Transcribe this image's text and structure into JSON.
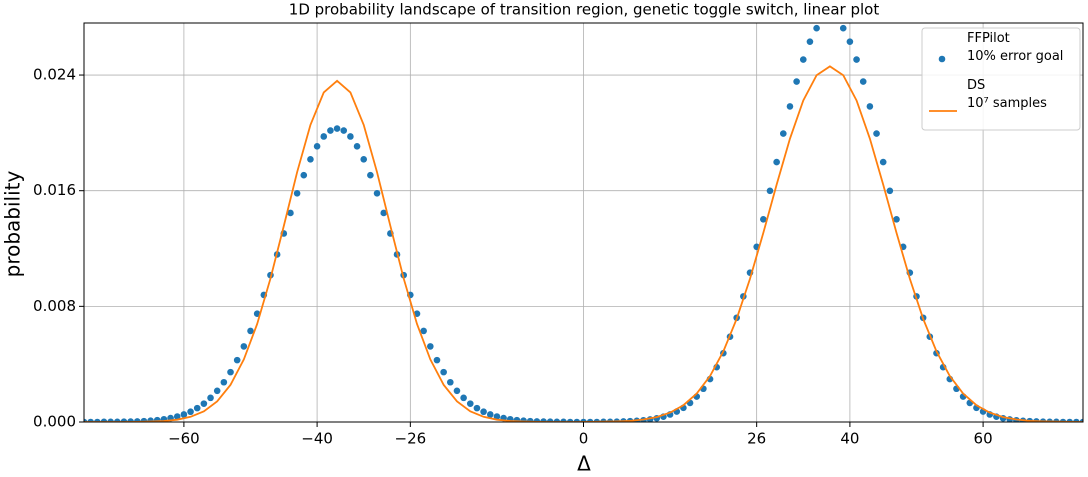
{
  "chart_data": {
    "type": "scatter",
    "title": "1D probability landscape of transition region, genetic toggle switch, linear plot",
    "xlabel": "Δ",
    "ylabel": "probability",
    "xlim": [
      -75,
      75
    ],
    "ylim": [
      0,
      0.0276
    ],
    "xticks": [
      {
        "value": -60,
        "label": "−60"
      },
      {
        "value": -40,
        "label": "−40"
      },
      {
        "value": -26,
        "label": "−26"
      },
      0,
      26,
      40,
      60
    ],
    "yticks": [
      {
        "value": 0,
        "label": "0.000"
      },
      {
        "value": 0.008,
        "label": "0.008"
      },
      {
        "value": 0.016,
        "label": "0.016"
      },
      {
        "value": 0.024,
        "label": "0.024"
      }
    ],
    "grid": true,
    "legend": "upper right",
    "series": [
      {
        "name": "FFPilot\n10% error goal",
        "type": "scatter",
        "color": "#1f77b4",
        "x": [
          -75,
          -74,
          -73,
          -72,
          -71,
          -70,
          -69,
          -68,
          -67,
          -66,
          -65,
          -64,
          -63,
          -62,
          -61,
          -60,
          -59,
          -58,
          -57,
          -56,
          -55,
          -54,
          -53,
          -52,
          -51,
          -50,
          -49,
          -48,
          -47,
          -46,
          -45,
          -44,
          -43,
          -42,
          -41,
          -40,
          -39,
          -38,
          -37,
          -36,
          -35,
          -34,
          -33,
          -32,
          -31,
          -30,
          -29,
          -28,
          -27,
          -26,
          -25,
          -24,
          -23,
          -22,
          -21,
          -20,
          -19,
          -18,
          -17,
          -16,
          -15,
          -14,
          -13,
          -12,
          -11,
          -10,
          -9,
          -8,
          -7,
          -6,
          -5,
          -4,
          -3,
          -2,
          -1,
          0,
          1,
          2,
          3,
          4,
          5,
          6,
          7,
          8,
          9,
          10,
          11,
          12,
          13,
          14,
          15,
          16,
          17,
          18,
          19,
          20,
          21,
          22,
          23,
          24,
          25,
          26,
          27,
          28,
          29,
          30,
          31,
          32,
          33,
          34,
          35,
          36,
          37,
          38,
          39,
          40,
          41,
          42,
          43,
          44,
          45,
          46,
          47,
          48,
          49,
          50,
          51,
          52,
          53,
          54,
          55,
          56,
          57,
          58,
          59,
          60,
          61,
          62,
          63,
          64,
          65,
          66,
          67,
          68,
          69,
          70,
          71,
          72,
          73,
          74,
          75
        ],
        "values": [
          0,
          0,
          0,
          1e-05,
          1e-05,
          1e-05,
          2e-05,
          3e-05,
          4e-05,
          6e-05,
          9e-05,
          0.00013,
          0.00019,
          0.00027,
          0.00038,
          0.00052,
          0.00071,
          0.00096,
          0.00127,
          0.00167,
          0.00216,
          0.00275,
          0.00345,
          0.00428,
          0.00523,
          0.0063,
          0.00749,
          0.00879,
          0.01016,
          0.01159,
          0.01304,
          0.01446,
          0.01582,
          0.01707,
          0.01817,
          0.01907,
          0.01975,
          0.02016,
          0.0203,
          0.02016,
          0.01975,
          0.01907,
          0.01817,
          0.01707,
          0.01582,
          0.01446,
          0.01304,
          0.01159,
          0.01016,
          0.00879,
          0.00749,
          0.0063,
          0.00523,
          0.00428,
          0.00345,
          0.00275,
          0.00216,
          0.00167,
          0.00127,
          0.00096,
          0.00071,
          0.00052,
          0.00038,
          0.00027,
          0.00019,
          0.00013,
          9e-05,
          6e-05,
          4e-05,
          3e-05,
          2e-05,
          1e-05,
          1e-05,
          0,
          0,
          0,
          0,
          0,
          1e-05,
          1e-05,
          2e-05,
          4e-05,
          6e-05,
          8e-05,
          0.00012,
          0.00018,
          0.00026,
          0.00037,
          0.00052,
          0.00072,
          0.00098,
          0.00132,
          0.00176,
          0.0023,
          0.00297,
          0.00379,
          0.00476,
          0.0059,
          0.00721,
          0.00869,
          0.01033,
          0.01212,
          0.01402,
          0.01599,
          0.01798,
          0.01995,
          0.02183,
          0.02355,
          0.02507,
          0.02631,
          0.02724,
          0.02781,
          0.028,
          0.02781,
          0.02724,
          0.02631,
          0.02507,
          0.02355,
          0.02183,
          0.01995,
          0.01798,
          0.01599,
          0.01402,
          0.01212,
          0.01033,
          0.00869,
          0.00721,
          0.0059,
          0.00476,
          0.00379,
          0.00297,
          0.0023,
          0.00176,
          0.00132,
          0.00098,
          0.00072,
          0.00052,
          0.00037,
          0.00026,
          0.00018,
          0.00012,
          8e-05,
          6e-05,
          4e-05,
          2e-05,
          1e-05,
          1e-05,
          0,
          0,
          0,
          0
        ]
      },
      {
        "name": "DS\n10⁷ samples",
        "type": "line",
        "color": "#ff7f0e",
        "x": [
          -75,
          -73,
          -71,
          -69,
          -67,
          -65,
          -63,
          -61,
          -59,
          -57,
          -55,
          -53,
          -51,
          -49,
          -47,
          -45,
          -43,
          -41,
          -39,
          -37,
          -35,
          -33,
          -31,
          -29,
          -27,
          -25,
          -23,
          -21,
          -19,
          -17,
          -15,
          -13,
          -11,
          -9,
          -7,
          -5,
          -3,
          -1,
          1,
          3,
          5,
          7,
          9,
          11,
          13,
          15,
          17,
          19,
          21,
          23,
          25,
          27,
          29,
          31,
          33,
          35,
          37,
          39,
          41,
          43,
          45,
          47,
          49,
          51,
          53,
          55,
          57,
          59,
          61,
          63,
          65,
          67,
          69,
          71,
          73,
          75
        ],
        "values": [
          0,
          0,
          0,
          0,
          1e-05,
          3e-05,
          7e-05,
          0.00016,
          0.00036,
          0.00074,
          0.00143,
          0.00257,
          0.00433,
          0.00678,
          0.00993,
          0.01356,
          0.01728,
          0.02055,
          0.0228,
          0.0236,
          0.0228,
          0.02055,
          0.01728,
          0.01356,
          0.00993,
          0.00678,
          0.00433,
          0.00257,
          0.00143,
          0.00074,
          0.00036,
          0.00016,
          7e-05,
          3e-05,
          1e-05,
          0,
          0,
          0,
          1e-05,
          2e-05,
          4e-05,
          8e-05,
          0.00017,
          0.00034,
          0.00065,
          0.00116,
          0.00197,
          0.00318,
          0.00489,
          0.00714,
          0.00991,
          0.01308,
          0.01642,
          0.0196,
          0.02224,
          0.02399,
          0.0246,
          0.02399,
          0.02224,
          0.0196,
          0.01642,
          0.01308,
          0.00991,
          0.00714,
          0.00489,
          0.00318,
          0.00197,
          0.00116,
          0.00065,
          0.00034,
          0.00017,
          8e-05,
          4e-05,
          2e-05,
          1e-05,
          0
        ]
      }
    ]
  }
}
